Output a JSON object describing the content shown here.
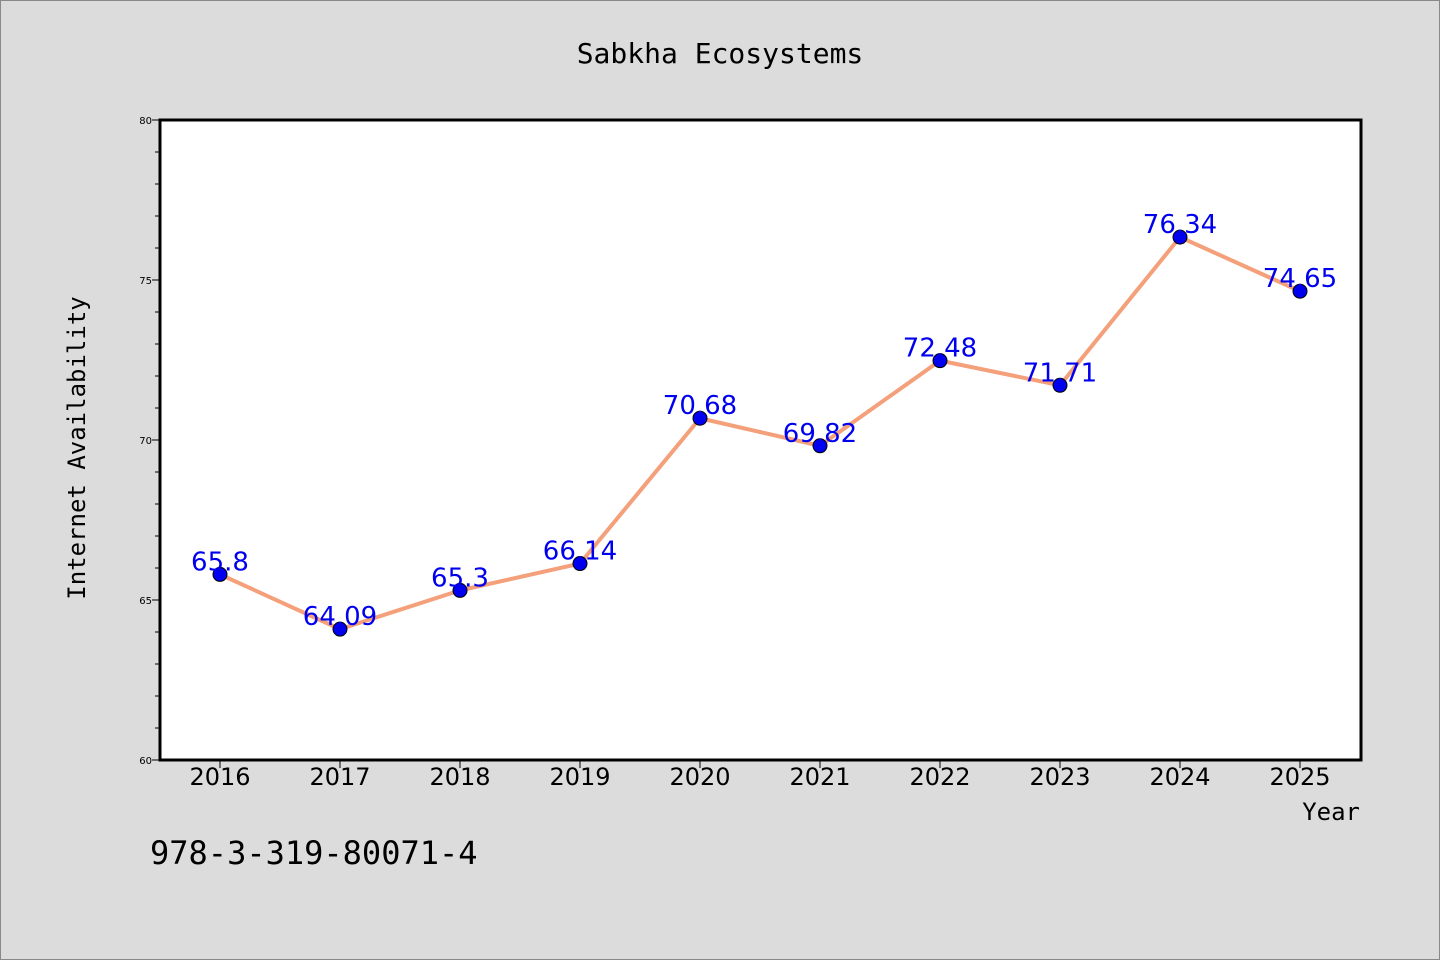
{
  "chart_data": {
    "type": "line",
    "title": "Sabkha Ecosystems",
    "xlabel": "Year",
    "ylabel": "Internet Availability",
    "categories": [
      "2016",
      "2017",
      "2018",
      "2019",
      "2020",
      "2021",
      "2022",
      "2023",
      "2024",
      "2025"
    ],
    "series": [
      {
        "values": [
          65.8,
          64.09,
          65.3,
          66.14,
          70.68,
          69.82,
          72.48,
          71.71,
          76.34,
          74.65
        ],
        "labels": [
          "65.8",
          "64.09",
          "65.3",
          "66.14",
          "70.68",
          "69.82",
          "72.48",
          "71.71",
          "76.34",
          "74.65"
        ],
        "line_color": "#f4a07a",
        "marker_color": "#0000ee"
      }
    ],
    "ylim": [
      60,
      80
    ],
    "y_major_ticks": [
      "60",
      "65",
      "70",
      "75",
      "80"
    ],
    "grid": false,
    "legend": "none",
    "label_color": "#0000ee"
  },
  "footer_text": "978-3-319-80071-4"
}
